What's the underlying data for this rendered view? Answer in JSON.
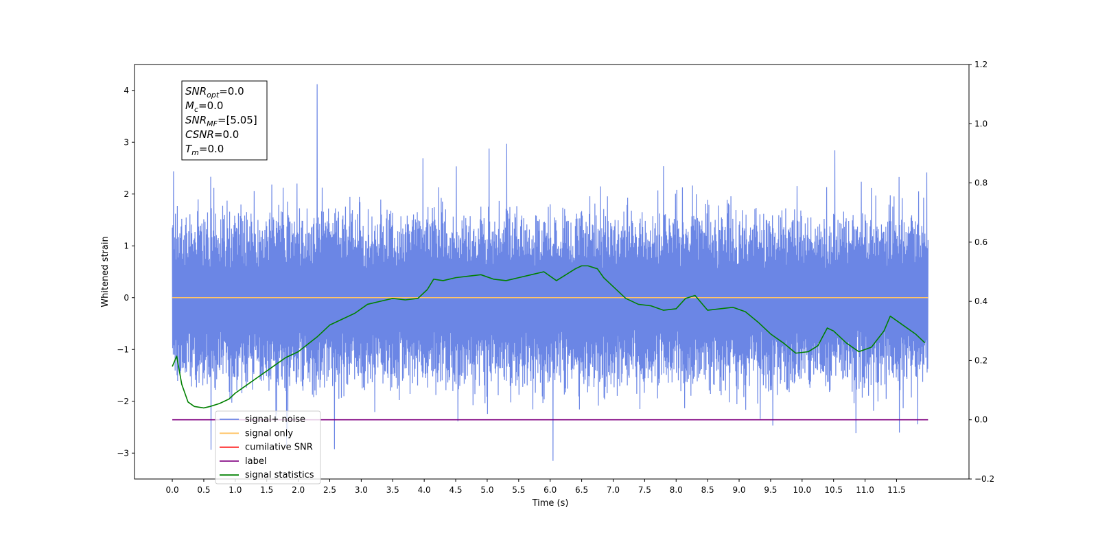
{
  "chart_data": {
    "type": "line",
    "xlabel": "Time (s)",
    "ylabel": "Whitened strain",
    "xlim": [
      -0.6,
      12.65
    ],
    "ylim": [
      -3.5,
      4.5
    ],
    "y2lim": [
      -0.2,
      1.2
    ],
    "x_ticks": [
      0.0,
      0.5,
      1.0,
      1.5,
      2.0,
      2.5,
      3.0,
      3.5,
      4.0,
      4.5,
      5.0,
      5.5,
      6.0,
      6.5,
      7.0,
      7.5,
      8.0,
      8.5,
      9.0,
      9.5,
      10.0,
      10.5,
      11.0,
      11.5
    ],
    "x_tick_labels": [
      "0.0",
      "0.5",
      "1.0",
      "1.5",
      "2.0",
      "2.5",
      "3.0",
      "3.5",
      "4.0",
      "4.5",
      "5.0",
      "5.5",
      "6.0",
      "6.5",
      "7.0",
      "7.5",
      "8.0",
      "8.5",
      "9.0",
      "9.5",
      "10.0",
      "10.5",
      "11.0",
      "11.5"
    ],
    "y_ticks": [
      -3,
      -2,
      -1,
      0,
      1,
      2,
      3,
      4
    ],
    "y_tick_labels": [
      "−3",
      "−2",
      "−1",
      "0",
      "1",
      "2",
      "3",
      "4"
    ],
    "y2_ticks": [
      -0.2,
      0.0,
      0.2,
      0.4,
      0.6,
      0.8,
      1.0,
      1.2
    ],
    "y2_tick_labels": [
      "−0.2",
      "0.0",
      "0.2",
      "0.4",
      "0.6",
      "0.8",
      "1.0",
      "1.2"
    ],
    "grid": false,
    "legend_position": "lower-left",
    "series": [
      {
        "name": "signal+ noise",
        "axis": "left",
        "color": "#6b86e5",
        "noise": {
          "x_range": [
            0.0,
            12.0
          ],
          "typical_range": [
            -1.5,
            1.35
          ],
          "min_peak": -3.15,
          "max_peak": 4.12,
          "max_peak_x": 2.3
        }
      },
      {
        "name": "signal only",
        "axis": "left",
        "color": "#ffc366",
        "x": [
          0.0,
          12.0
        ],
        "y": [
          0.0,
          0.0
        ]
      },
      {
        "name": "cumilative SNR",
        "axis": "right",
        "color": "#ff0000",
        "x": [],
        "y": []
      },
      {
        "name": "label",
        "axis": "right",
        "color": "#800080",
        "x": [
          0.0,
          12.0
        ],
        "y": [
          0.0,
          0.0
        ]
      },
      {
        "name": "signal statistics",
        "axis": "right",
        "color": "#008000",
        "x": [
          0.0,
          0.07,
          0.15,
          0.25,
          0.35,
          0.5,
          0.6,
          0.75,
          0.9,
          1.0,
          1.2,
          1.4,
          1.6,
          1.8,
          2.0,
          2.3,
          2.5,
          2.7,
          2.9,
          3.1,
          3.3,
          3.5,
          3.7,
          3.9,
          4.05,
          4.15,
          4.3,
          4.5,
          4.7,
          4.9,
          5.1,
          5.3,
          5.5,
          5.7,
          5.9,
          6.1,
          6.25,
          6.4,
          6.5,
          6.6,
          6.75,
          6.85,
          7.0,
          7.2,
          7.4,
          7.6,
          7.8,
          8.0,
          8.15,
          8.3,
          8.5,
          8.7,
          8.9,
          9.1,
          9.3,
          9.5,
          9.7,
          9.9,
          10.1,
          10.25,
          10.4,
          10.5,
          10.7,
          10.9,
          11.1,
          11.3,
          11.4,
          11.6,
          11.8,
          11.95
        ],
        "y": [
          0.18,
          0.215,
          0.12,
          0.06,
          0.045,
          0.04,
          0.045,
          0.055,
          0.07,
          0.09,
          0.12,
          0.15,
          0.18,
          0.21,
          0.23,
          0.28,
          0.32,
          0.34,
          0.36,
          0.39,
          0.4,
          0.41,
          0.405,
          0.41,
          0.44,
          0.475,
          0.47,
          0.48,
          0.485,
          0.49,
          0.475,
          0.47,
          0.48,
          0.49,
          0.5,
          0.47,
          0.49,
          0.51,
          0.52,
          0.52,
          0.51,
          0.48,
          0.45,
          0.41,
          0.39,
          0.385,
          0.37,
          0.375,
          0.41,
          0.42,
          0.37,
          0.375,
          0.38,
          0.365,
          0.33,
          0.29,
          0.26,
          0.225,
          0.23,
          0.25,
          0.31,
          0.3,
          0.26,
          0.23,
          0.245,
          0.3,
          0.35,
          0.32,
          0.29,
          0.26
        ]
      }
    ],
    "annotation_box": {
      "lines": [
        {
          "name": "SNR",
          "sub": "opt",
          "value": "=0.0"
        },
        {
          "name": "M",
          "sub": "c",
          "value": "=0.0"
        },
        {
          "name": "SNR",
          "sub": "MF",
          "value": "=[5.05]"
        },
        {
          "name": "CSNR",
          "sub": "",
          "value": "=0.0"
        },
        {
          "name": "T",
          "sub": "m",
          "value": "=0.0"
        }
      ]
    }
  }
}
